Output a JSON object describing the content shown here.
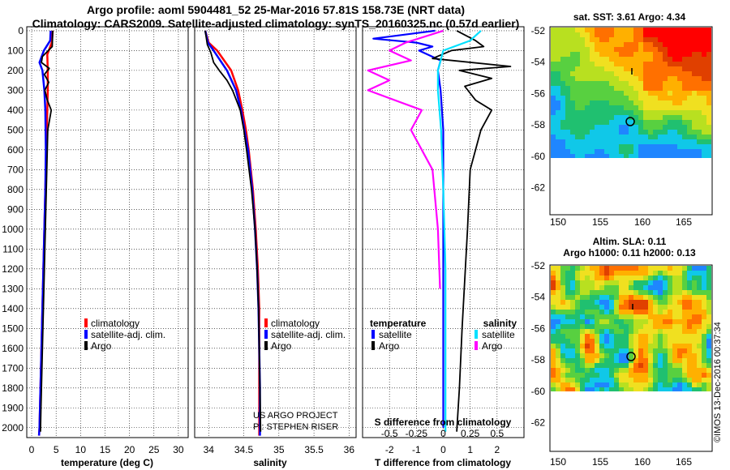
{
  "header": {
    "title_line1": "Argo profile: aoml 5904481_52 25-Mar-2016 57.81S 158.73E (NRT data)",
    "title_line2": "Climatology: CARS2009. Satellite-adjusted climatology: synTS_20160325.nc (0.57d earlier)"
  },
  "colors": {
    "climatology": "#ff0000",
    "satellite": "#0000ff",
    "argo": "#000000",
    "temp_diff_argo": "#ff00ff",
    "sat_salinity": "#00e0ff"
  },
  "chart_data": [
    {
      "id": "temperature",
      "type": "line",
      "xlabel": "temperature (deg C)",
      "ylabel": "",
      "xlim": [
        -1,
        32
      ],
      "ylim": [
        2050,
        -20
      ],
      "xticks": [
        0,
        5,
        10,
        15,
        20,
        25,
        30
      ],
      "yticks": [
        0,
        100,
        200,
        300,
        400,
        500,
        600,
        700,
        800,
        900,
        1000,
        1100,
        1200,
        1300,
        1400,
        1500,
        1600,
        1700,
        1800,
        1900,
        2000
      ],
      "grid": true,
      "legend": [
        "climatology",
        "satellite-adj. clim.",
        "Argo"
      ],
      "series": [
        {
          "name": "climatology",
          "depth": [
            0,
            60,
            120,
            200,
            300,
            400,
            600,
            800,
            1000,
            1200,
            1400,
            1600,
            1800,
            2000,
            2040
          ],
          "values": [
            4.3,
            4.1,
            3.2,
            3.3,
            3.3,
            3.2,
            3.0,
            2.8,
            2.6,
            2.4,
            2.2,
            2.0,
            1.8,
            1.6,
            1.5
          ]
        },
        {
          "name": "satellite-adj. clim.",
          "depth": [
            0,
            50,
            100,
            160,
            200,
            300,
            400,
            600,
            800,
            1000,
            1200,
            1400,
            1600,
            1800,
            2000,
            2040
          ],
          "values": [
            3.9,
            3.8,
            2.5,
            1.6,
            2.2,
            2.6,
            2.8,
            2.9,
            2.8,
            2.6,
            2.4,
            2.2,
            2.0,
            1.8,
            1.6,
            1.5
          ]
        },
        {
          "name": "Argo",
          "depth": [
            0,
            80,
            130,
            160,
            190,
            220,
            260,
            300,
            350,
            400,
            500,
            700,
            900,
            1100,
            1300,
            1500,
            1700,
            1900,
            2020
          ],
          "values": [
            4.3,
            4.2,
            2.2,
            2.0,
            3.6,
            2.6,
            3.5,
            2.7,
            3.2,
            4.0,
            3.3,
            3.1,
            2.9,
            2.7,
            2.5,
            2.3,
            2.1,
            1.9,
            1.8
          ]
        }
      ]
    },
    {
      "id": "salinity",
      "type": "line",
      "xlabel": "salinity",
      "xlim": [
        33.8,
        36.1
      ],
      "ylim": [
        2050,
        -20
      ],
      "xticks": [
        34,
        34.5,
        35,
        35.5,
        36
      ],
      "xticklabels": [
        "34",
        "34.5",
        "35",
        "35.5",
        "36"
      ],
      "grid": true,
      "legend": [
        "climatology",
        "satellite-adj. clim.",
        "Argo"
      ],
      "annotations": [
        "US ARGO PROJECT",
        "PI: STEPHEN RISER"
      ],
      "series": [
        {
          "name": "climatology",
          "depth": [
            0,
            60,
            100,
            200,
            300,
            400,
            500,
            600,
            700,
            800,
            1000,
            1200,
            1400,
            1600,
            1800,
            2040
          ],
          "values": [
            33.95,
            34.0,
            34.12,
            34.32,
            34.42,
            34.48,
            34.53,
            34.57,
            34.6,
            34.63,
            34.67,
            34.7,
            34.72,
            34.72,
            34.72,
            34.72
          ]
        },
        {
          "name": "satellite-adj. clim.",
          "depth": [
            0,
            60,
            100,
            200,
            300,
            400,
            500,
            600,
            700,
            800,
            1000,
            1200,
            1400,
            1600,
            1800,
            2040
          ],
          "values": [
            33.95,
            33.99,
            34.07,
            34.26,
            34.39,
            34.46,
            34.51,
            34.56,
            34.59,
            34.62,
            34.66,
            34.69,
            34.71,
            34.72,
            34.73,
            34.73
          ]
        },
        {
          "name": "Argo",
          "depth": [
            0,
            70,
            110,
            160,
            200,
            250,
            300,
            400,
            500,
            600,
            800,
            1000,
            1200,
            1400,
            1600,
            1800,
            2020
          ],
          "values": [
            33.95,
            33.98,
            34.03,
            34.07,
            34.15,
            34.26,
            34.34,
            34.45,
            34.5,
            34.54,
            34.61,
            34.66,
            34.69,
            34.71,
            34.72,
            34.73,
            34.74
          ]
        }
      ]
    },
    {
      "id": "difference",
      "type": "line",
      "xlabel": "T difference from climatology",
      "top_label": "S difference from climatology",
      "xlim": [
        -3,
        3
      ],
      "ylim": [
        2050,
        -20
      ],
      "xticks": [
        -2,
        -1,
        0,
        1,
        2
      ],
      "xticklabels": [
        "-2",
        "-1",
        "0",
        "1",
        "2"
      ],
      "sticks": [
        -0.5,
        -0.25,
        0,
        0.25,
        0.5
      ],
      "sticklabels": [
        "-0.5",
        "-0.25",
        "0",
        "0.25",
        "0.5"
      ],
      "grid": true,
      "legend_titles": [
        "temperature",
        "salinity"
      ],
      "legend": [
        "satellite",
        "Argo",
        "satellite",
        "Argo"
      ],
      "series": [
        {
          "name": "temperature satellite",
          "depth": [
            0,
            40,
            60,
            80,
            100,
            150,
            200,
            300,
            500,
            800,
            1200,
            1600,
            2000
          ],
          "values": [
            -0.3,
            -2.6,
            -1.0,
            -0.4,
            -0.9,
            -0.1,
            -0.2,
            -0.1,
            0.0,
            0.0,
            0.0,
            0.0,
            0.0
          ]
        },
        {
          "name": "temperature Argo",
          "depth": [
            0,
            50,
            80,
            100,
            140,
            180,
            200,
            240,
            280,
            350,
            400,
            500,
            700,
            1000,
            1500,
            1800,
            2020
          ],
          "values": [
            0.5,
            1.2,
            1.5,
            0.3,
            -0.4,
            2.5,
            0.6,
            1.8,
            0.8,
            1.2,
            1.8,
            1.4,
            1.0,
            0.9,
            0.7,
            0.6,
            0.5
          ]
        },
        {
          "name": "salinity satellite",
          "depth": [
            0,
            50,
            100,
            200,
            300,
            500,
            800,
            1200,
            1600,
            2020
          ],
          "values": [
            0.35,
            0.25,
            0.0,
            -0.05,
            -0.05,
            -0.02,
            0.0,
            0.02,
            0.02,
            0.02
          ]
        },
        {
          "name": "salinity Argo",
          "depth": [
            0,
            60,
            100,
            150,
            200,
            250,
            300,
            400,
            500,
            700,
            1000,
            1300
          ],
          "values": [
            0.0,
            -0.35,
            -0.5,
            -0.3,
            -0.7,
            -0.5,
            -0.7,
            -0.2,
            -0.3,
            -0.1,
            -0.05,
            -0.03
          ]
        }
      ]
    }
  ],
  "maps": {
    "sst": {
      "title": "sat. SST: 3.61 Argo: 4.34",
      "lat_ticks": [
        "-52",
        "-54",
        "-56",
        "-58",
        "-60",
        "-62"
      ],
      "lon_ticks": [
        "150",
        "155",
        "160",
        "165"
      ],
      "float_position": {
        "lon": 158.73,
        "lat": -57.81
      }
    },
    "sla": {
      "title_line1": "Altim. SLA: 0.11",
      "title_line2": "Argo h1000: 0.11 h2000: 0.13",
      "lat_ticks": [
        "-52",
        "-54",
        "-56",
        "-58",
        "-60",
        "-62"
      ],
      "lon_ticks": [
        "150",
        "155",
        "160",
        "165"
      ],
      "float_position": {
        "lon": 158.73,
        "lat": -57.81
      }
    }
  },
  "footer": {
    "credit": "©IMOS 13-Dec-2016 00:37:34"
  }
}
